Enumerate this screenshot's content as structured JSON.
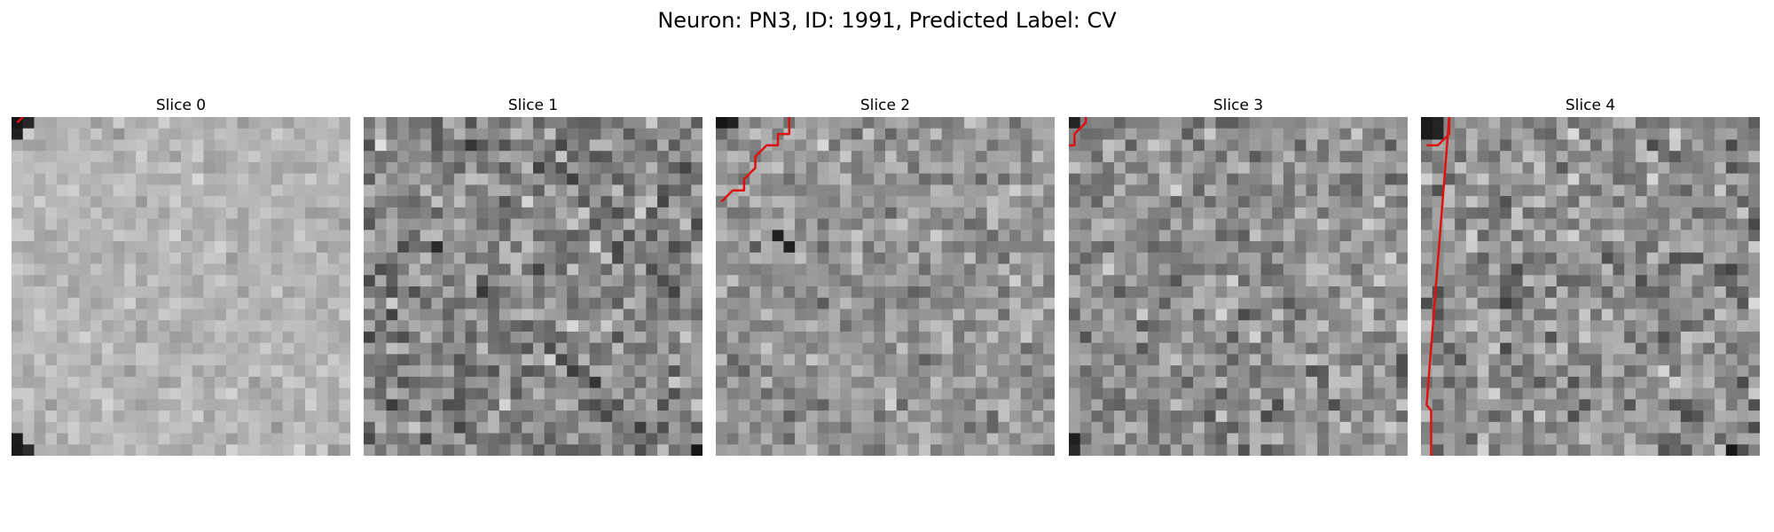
{
  "figure": {
    "title": "Neuron: PN3, ID: 1991, Predicted Label: CV"
  },
  "chart_data": {
    "type": "heatmap",
    "colormap": "gray",
    "grid_size": 30,
    "contour_color": "#e01010",
    "panels": [
      {
        "title": "Slice 0",
        "seed": 11,
        "base": 180,
        "spread": 38,
        "dark_spots": [
          [
            0,
            0
          ],
          [
            0,
            1
          ],
          [
            1,
            0
          ],
          [
            29,
            0
          ],
          [
            28,
            0
          ],
          [
            29,
            1
          ]
        ],
        "contour": [
          [
            0.5,
            0.5
          ],
          [
            1.0,
            0.0
          ]
        ]
      },
      {
        "title": "Slice 1",
        "seed": 23,
        "base": 135,
        "spread": 95,
        "dark_spots": [
          [
            29,
            29
          ],
          [
            11,
            6
          ]
        ],
        "contour": []
      },
      {
        "title": "Slice 2",
        "seed": 37,
        "base": 150,
        "spread": 70,
        "dark_spots": [
          [
            0,
            0
          ],
          [
            0,
            1
          ],
          [
            10,
            5
          ],
          [
            11,
            6
          ]
        ],
        "contour": [
          [
            6.5,
            0.0
          ],
          [
            6.5,
            1.5
          ],
          [
            5.5,
            1.5
          ],
          [
            5.5,
            2.5
          ],
          [
            4.5,
            2.5
          ],
          [
            3.5,
            3.5
          ],
          [
            3.5,
            4.5
          ],
          [
            2.5,
            5.5
          ],
          [
            2.5,
            6.5
          ],
          [
            1.5,
            6.5
          ],
          [
            0.5,
            7.5
          ]
        ]
      },
      {
        "title": "Slice 3",
        "seed": 53,
        "base": 145,
        "spread": 82,
        "dark_spots": [
          [
            0,
            0
          ],
          [
            29,
            0
          ],
          [
            28,
            0
          ]
        ],
        "contour": [
          [
            0.0,
            2.5
          ],
          [
            0.5,
            2.5
          ],
          [
            0.5,
            1.5
          ],
          [
            1.5,
            0.5
          ],
          [
            1.5,
            0.0
          ]
        ]
      },
      {
        "title": "Slice 4",
        "seed": 71,
        "base": 142,
        "spread": 88,
        "dark_spots": [
          [
            0,
            0
          ],
          [
            0,
            1
          ],
          [
            1,
            0
          ],
          [
            1,
            1
          ],
          [
            29,
            27
          ]
        ],
        "contour": [
          [
            0.5,
            2.5
          ],
          [
            1.5,
            2.5
          ],
          [
            2.5,
            1.5
          ],
          [
            2.5,
            0.0
          ],
          [
            0.5,
            25.5
          ],
          [
            0.9,
            26.0
          ],
          [
            0.9,
            30.0
          ]
        ]
      }
    ]
  }
}
